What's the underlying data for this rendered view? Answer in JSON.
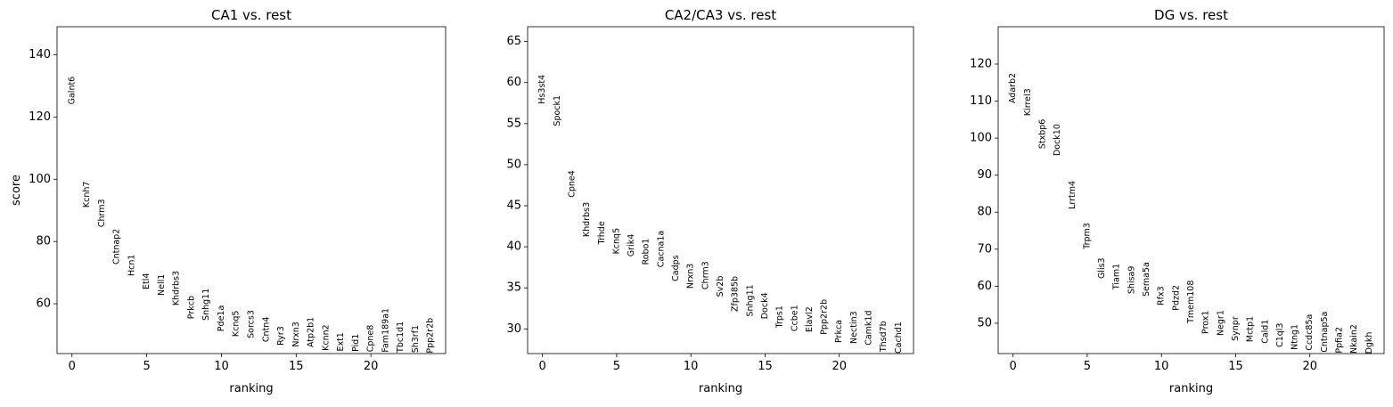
{
  "chart_data": [
    {
      "type": "ranked-genes",
      "title": "CA1 vs. rest",
      "xlabel": "ranking",
      "ylabel": "score",
      "x": [
        0,
        1,
        2,
        3,
        4,
        5,
        6,
        7,
        8,
        9,
        10,
        11,
        12,
        13,
        14,
        15,
        16,
        17,
        18,
        19,
        20,
        21,
        22,
        23,
        24
      ],
      "labels": [
        "Galnt6",
        "Kcnh7",
        "Chrm3",
        "Cntnap2",
        "Hcn1",
        "Etl4",
        "Nell1",
        "Khdrbs3",
        "Prkcb",
        "Snhg11",
        "Pde1a",
        "Kcnq5",
        "Sorcs3",
        "Cntn4",
        "Ryr3",
        "Nrxn3",
        "Atp2b1",
        "Kcnn2",
        "Ext1",
        "Pid1",
        "Cpne8",
        "Fam189a1",
        "Tbc1d1",
        "Sh3rf1",
        "Ppp2r2b"
      ],
      "values": [
        124,
        90.9,
        84.6,
        72.6,
        68.9,
        64.6,
        62.6,
        59.4,
        55.1,
        54.6,
        51.1,
        49.4,
        48.9,
        47.7,
        46.6,
        46.1,
        46,
        44.9,
        44.7,
        44.6,
        44.5,
        44.4,
        44.3,
        44.2,
        44.1
      ],
      "xlim": [
        -1,
        25
      ],
      "ylim": [
        44,
        149
      ],
      "xticks": [
        0,
        5,
        10,
        15,
        20
      ],
      "yticks": [
        60,
        80,
        100,
        120,
        140
      ],
      "color": "#000000"
    },
    {
      "type": "ranked-genes",
      "title": "CA2/CA3 vs. rest",
      "xlabel": "ranking",
      "x": [
        0,
        1,
        2,
        3,
        4,
        5,
        6,
        7,
        8,
        9,
        10,
        11,
        12,
        13,
        14,
        15,
        16,
        17,
        18,
        19,
        20,
        21,
        22,
        23,
        24
      ],
      "labels": [
        "Hs3st4",
        "Spock1",
        "Cpne4",
        "Khdrbs3",
        "Trhde",
        "Kcnq5",
        "Grik4",
        "Robo1",
        "Cacna1a",
        "Cadps",
        "Nrxn3",
        "Chrm3",
        "Sv2b",
        "Zfp385b",
        "Snhg11",
        "Dock4",
        "Trps1",
        "Ccbe1",
        "Elavl2",
        "Ppp2r2b",
        "Prkca",
        "Nectin3",
        "Camk1d",
        "Thsd7b",
        "Cachd1"
      ],
      "values": [
        57.4,
        54.7,
        46,
        41.2,
        40.3,
        39.1,
        38.8,
        37.8,
        37.5,
        35.8,
        34.9,
        34.8,
        33.9,
        32.1,
        31.5,
        31.2,
        30.1,
        29.7,
        29.6,
        29.3,
        28.3,
        28.2,
        28,
        27.2,
        27
      ],
      "xlim": [
        -1,
        25
      ],
      "ylim": [
        27,
        66.8
      ],
      "xticks": [
        0,
        5,
        10,
        15,
        20
      ],
      "yticks": [
        30,
        35,
        40,
        45,
        50,
        55,
        60,
        65
      ],
      "color": "#000000"
    },
    {
      "type": "ranked-genes",
      "title": "DG vs. rest",
      "xlabel": "ranking",
      "x": [
        0,
        1,
        2,
        3,
        4,
        5,
        6,
        7,
        8,
        9,
        10,
        11,
        12,
        13,
        14,
        15,
        16,
        17,
        18,
        19,
        20,
        21,
        22,
        23,
        24
      ],
      "labels": [
        "Adarb2",
        "Kirrel3",
        "Stxbp6",
        "Dock10",
        "Lrrtm4",
        "Trpm3",
        "Glis3",
        "Tiam1",
        "Shisa9",
        "Sema5a",
        "Rfx3",
        "Pdzd2",
        "Tmem108",
        "Prox1",
        "Negr1",
        "Synpr",
        "Mctp1",
        "Cald1",
        "C1ql3",
        "Ntng1",
        "Ccdc85a",
        "Cntnap5a",
        "Ppfia2",
        "Nkain2",
        "Dgkh"
      ],
      "values": [
        109.4,
        106,
        97.1,
        95.2,
        80.8,
        70,
        62,
        59.1,
        57.9,
        57.2,
        54.8,
        53.4,
        50,
        47.1,
        46.6,
        45.2,
        44.9,
        44.5,
        43.5,
        42.8,
        42.6,
        42.1,
        41.9,
        41.8,
        41.7
      ],
      "xlim": [
        -1,
        25
      ],
      "ylim": [
        41.8,
        130.1
      ],
      "xticks": [
        0,
        5,
        10,
        15,
        20
      ],
      "yticks": [
        50,
        60,
        70,
        80,
        90,
        100,
        110,
        120
      ],
      "color": "#000000"
    }
  ]
}
